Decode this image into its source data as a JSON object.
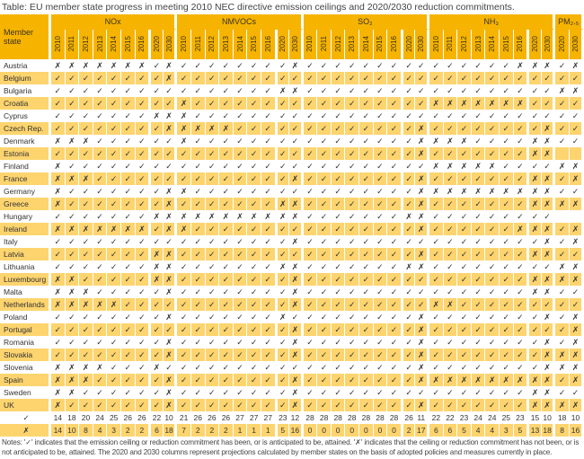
{
  "title": "Table: EU member state progress in meeting 2010 NEC directive emission ceilings and 2020/2030 reduction commitments.",
  "header": {
    "member_state": "Member state",
    "groups": [
      {
        "key": "nox",
        "label": "NOx",
        "years": [
          "2010",
          "2011",
          "2012",
          "2013",
          "2014",
          "2015",
          "2016",
          "2020",
          "2030"
        ]
      },
      {
        "key": "nmvoc",
        "label": "NMVOCs",
        "years": [
          "2010",
          "2011",
          "2012",
          "2013",
          "2014",
          "2015",
          "2016",
          "2020",
          "2030"
        ]
      },
      {
        "key": "so2",
        "label": "SO₂",
        "years": [
          "2010",
          "2011",
          "2012",
          "2013",
          "2014",
          "2015",
          "2016",
          "2020",
          "2030"
        ]
      },
      {
        "key": "nh3",
        "label": "NH₃",
        "years": [
          "2010",
          "2011",
          "2012",
          "2013",
          "2014",
          "2015",
          "2016",
          "2020",
          "2030"
        ]
      },
      {
        "key": "pm",
        "label": "PM₂.₅",
        "years": [
          "2020",
          "2030"
        ]
      }
    ]
  },
  "symbols": {
    "v": "✓",
    "x": "✗",
    "-": ""
  },
  "colors": {
    "header": "#f6b400",
    "stripe": "#fdd46e"
  },
  "rows": [
    {
      "state": "Austria",
      "nox": "xxxxxxxvx",
      "nmvoc": "vvvvvvvvx",
      "so2": "vvvvvvvvv",
      "nh3": "vvvvvvxxx",
      "pm": "vx"
    },
    {
      "state": "Belgium",
      "nox": "vvvvvvvvx",
      "nmvoc": "vvvvvvvvv",
      "so2": "vvvvvvvvv",
      "nh3": "vvvvvvvvv",
      "pm": "vv"
    },
    {
      "state": "Bulgaria",
      "nox": "vvvvvvvvv",
      "nmvoc": "vvvvvvvxx",
      "so2": "vvvvvvvvv",
      "nh3": "vvvvvvvvv",
      "pm": "xx"
    },
    {
      "state": "Croatia",
      "nox": "vvvvvvvvv",
      "nmvoc": "xvvvvvvvv",
      "so2": "vvvvvvvvv",
      "nh3": "xxxxxxxvv",
      "pm": "vv"
    },
    {
      "state": "Cyprus",
      "nox": "vvvvvvvxx",
      "nmvoc": "xvvvvvvvv",
      "so2": "vvvvvvvvv",
      "nh3": "vvvvvvvvv",
      "pm": "vv"
    },
    {
      "state": "Czech Rep.",
      "nox": "vvvvvvvvx",
      "nmvoc": "xxxxvvvvv",
      "so2": "vvvvvvvvx",
      "nh3": "vvvvvvvvx",
      "pm": "vv"
    },
    {
      "state": "Denmark",
      "nox": "xxxvvvvvv",
      "nmvoc": "xvvvvvvvv",
      "so2": "vvvvvvvvx",
      "nh3": "xxxvvvvxx",
      "pm": "vv"
    },
    {
      "state": "Estonia",
      "nox": "vvvvvvvvv",
      "nmvoc": "vvvvvvvvv",
      "so2": "vvvvvvvvx",
      "nh3": "vvvvvvvxx",
      "pm": "--"
    },
    {
      "state": "Finland",
      "nox": "xvvvvvvvv",
      "nmvoc": "vvvvvvvvv",
      "so2": "vvvvvvvvv",
      "nh3": "xxxxxvvvv",
      "pm": "xx"
    },
    {
      "state": "France",
      "nox": "xxxvvvvvv",
      "nmvoc": "vvvvvvvvx",
      "so2": "vvvvvvvvx",
      "nh3": "vvvvvvvxx",
      "pm": "vx"
    },
    {
      "state": "Germany",
      "nox": "xvvvvvvvx",
      "nmvoc": "xvvvvvvvv",
      "so2": "vvvvvvvvx",
      "nh3": "xxxxxxxxx",
      "pm": "vv"
    },
    {
      "state": "Greece",
      "nox": "xvvvvvvvx",
      "nmvoc": "vvvvvvvxx",
      "so2": "vvvvvvvvx",
      "nh3": "vvvvvvvxx",
      "pm": "xx"
    },
    {
      "state": "Hungary",
      "nox": "vvvvvvvxx",
      "nmvoc": "xxxxxxxxx",
      "so2": "vvvvvvvxx",
      "nh3": "vvvvvvvvv",
      "pm": "--"
    },
    {
      "state": "Ireland",
      "nox": "xxxxxxxvx",
      "nmvoc": "xvvvvvvvv",
      "so2": "vvvvvvvvx",
      "nh3": "vvvvvvxxx",
      "pm": "vx"
    },
    {
      "state": "Italy",
      "nox": "vvvvvvvvv",
      "nmvoc": "vvvvvvvvx",
      "so2": "vvvvvvvvv",
      "nh3": "vvvvvvvvx",
      "pm": "vx"
    },
    {
      "state": "Latvia",
      "nox": "vvvvvvvxx",
      "nmvoc": "vvvvvvvvv",
      "so2": "vvvvvvvvx",
      "nh3": "vvvvvvvxx",
      "pm": "vv"
    },
    {
      "state": "Lithuania",
      "nox": "vvvvvvvxx",
      "nmvoc": "vvvvvvvxx",
      "so2": "vvvvvvvxx",
      "nh3": "vvvvvvvvv",
      "pm": "xx"
    },
    {
      "state": "Luxembourg",
      "nox": "xxvvvvvxx",
      "nmvoc": "vvvvvvvvx",
      "so2": "vvvvvvvvv",
      "nh3": "vvvvvvvxx",
      "pm": "xx"
    },
    {
      "state": "Malta",
      "nox": "xxxvvvvvx",
      "nmvoc": "vvvvvvvvx",
      "so2": "vvvvvvvvv",
      "nh3": "vvvvvvvxx",
      "pm": "vv"
    },
    {
      "state": "Netherlands",
      "nox": "xxxxxvvvv",
      "nmvoc": "vvvvvvvvx",
      "so2": "vvvvvvvvv",
      "nh3": "xxvvvvvvv",
      "pm": "vv"
    },
    {
      "state": "Poland",
      "nox": "vvvvvvvvx",
      "nmvoc": "vvvvvvvxv",
      "so2": "vvvvvvvvx",
      "nh3": "vvvvvvvvx",
      "pm": "vx"
    },
    {
      "state": "Portugal",
      "nox": "vvvvvvvvv",
      "nmvoc": "vvvvvvvvx",
      "so2": "vvvvvvvvx",
      "nh3": "vvvvvvvvv",
      "pm": "vx"
    },
    {
      "state": "Romania",
      "nox": "vvvvvvvvx",
      "nmvoc": "vvvvvvvvx",
      "so2": "vvvvvvvvx",
      "nh3": "vvvvvvvvx",
      "pm": "vx"
    },
    {
      "state": "Slovakia",
      "nox": "vvvvvvvvx",
      "nmvoc": "vvvvvvvvx",
      "so2": "vvvvvvvvx",
      "nh3": "vvvvvvvvx",
      "pm": "xx"
    },
    {
      "state": "Slovenia",
      "nox": "xxxxvvvxv",
      "nmvoc": "vvvvvvvvv",
      "so2": "vvvvvvvvx",
      "nh3": "vvvvvvvvx",
      "pm": "xx"
    },
    {
      "state": "Spain",
      "nox": "xxxvvvvvx",
      "nmvoc": "vvvvvvvvx",
      "so2": "vvvvvvvvx",
      "nh3": "xxxxxxxxx",
      "pm": "vx"
    },
    {
      "state": "Sweden",
      "nox": "xxvvvvvvx",
      "nmvoc": "vvvvvvvvx",
      "so2": "vvvvvvvvv",
      "nh3": "vvvvvvvxx",
      "pm": "vv"
    },
    {
      "state": "UK",
      "nox": "xvvvvvvvx",
      "nmvoc": "vvvvvvvvx",
      "so2": "vvvvvvvvx",
      "nh3": "vvvvvvvxx",
      "pm": "xx"
    }
  ],
  "totals": [
    {
      "label": "✓",
      "nox": [
        "14",
        "18",
        "20",
        "24",
        "25",
        "26",
        "26",
        "22",
        "10"
      ],
      "nmvoc": [
        "21",
        "26",
        "26",
        "26",
        "27",
        "27",
        "27",
        "23",
        "12"
      ],
      "so2": [
        "28",
        "28",
        "28",
        "28",
        "28",
        "28",
        "28",
        "26",
        "11"
      ],
      "nh3": [
        "22",
        "22",
        "23",
        "24",
        "24",
        "25",
        "23",
        "15",
        "10"
      ],
      "pm": [
        "18",
        "10"
      ]
    },
    {
      "label": "✗",
      "nox": [
        "14",
        "10",
        "8",
        "4",
        "3",
        "2",
        "2",
        "6",
        "18"
      ],
      "nmvoc": [
        "7",
        "2",
        "2",
        "2",
        "1",
        "1",
        "1",
        "5",
        "16"
      ],
      "so2": [
        "0",
        "0",
        "0",
        "0",
        "0",
        "0",
        "0",
        "2",
        "17"
      ],
      "nh3": [
        "6",
        "6",
        "5",
        "4",
        "4",
        "3",
        "5",
        "13",
        "18"
      ],
      "pm": [
        "8",
        "16"
      ]
    }
  ],
  "notes": "Notes: '✓' indicates that the emission ceiling or reduction commitment has been, or is anticipated to be, attained. '✗' indicates that the ceiling or reduction commitment has not been, or is not anticipated to be, attained. The 2020 and 2030 columns represent  projections calculated by member states on the basis of adopted policies and measures currently in place."
}
